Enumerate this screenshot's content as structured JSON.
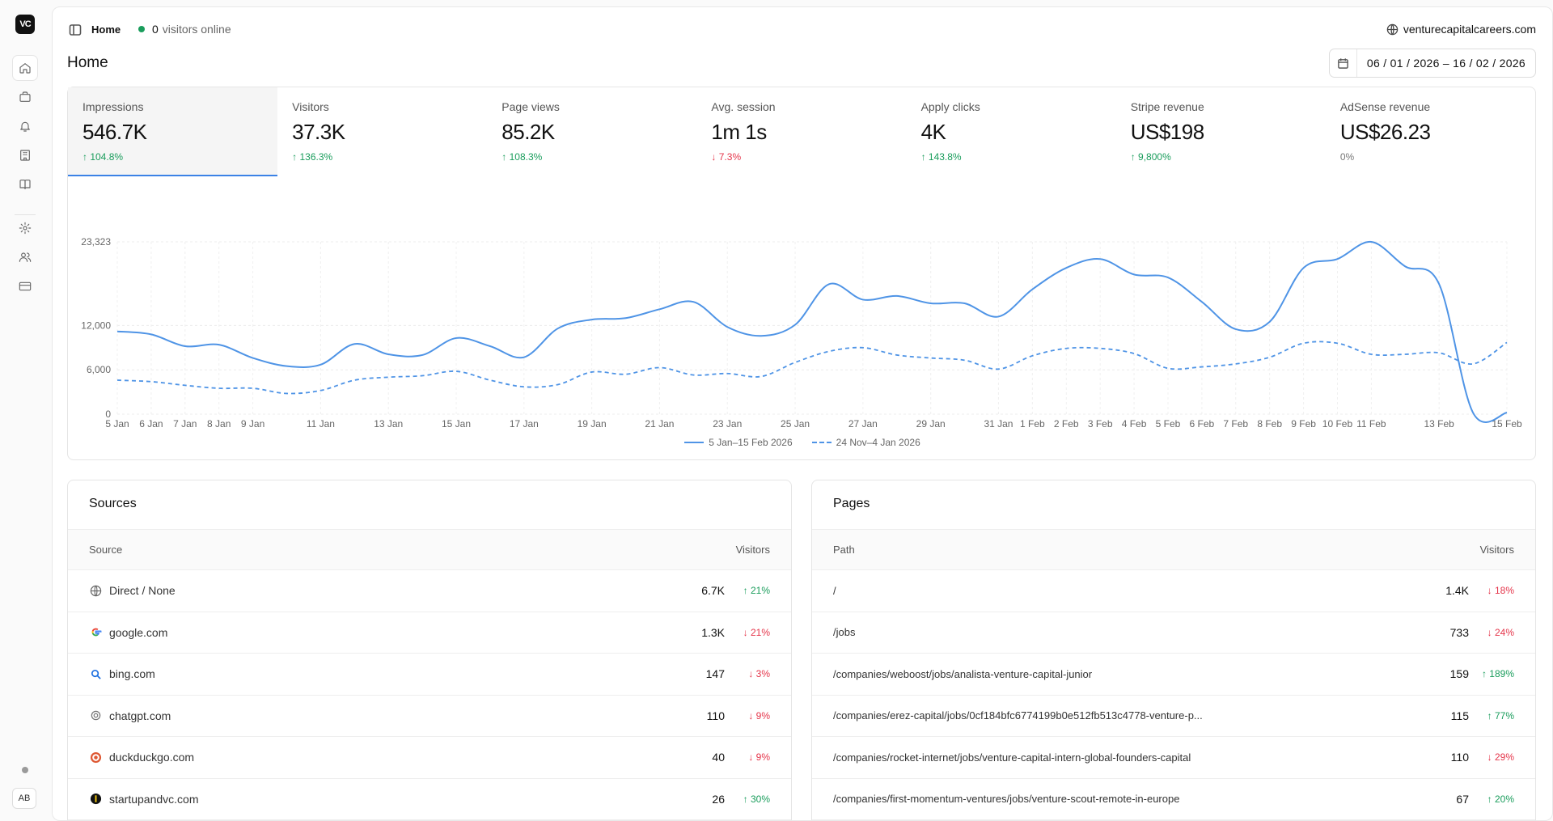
{
  "app": {
    "logo": "VC",
    "avatar": "AB"
  },
  "header": {
    "breadcrumb": "Home",
    "online_count": "0",
    "online_label": "visitors online",
    "site": "venturecapitalcareers.com"
  },
  "page": {
    "title": "Home",
    "date_range": "06 / 01 / 2026  –  16 / 02 / 2026"
  },
  "kpis": [
    {
      "label": "Impressions",
      "value": "546.7K",
      "delta": "↑ 104.8%",
      "dir": "up"
    },
    {
      "label": "Visitors",
      "value": "37.3K",
      "delta": "↑ 136.3%",
      "dir": "up"
    },
    {
      "label": "Page views",
      "value": "85.2K",
      "delta": "↑ 108.3%",
      "dir": "up"
    },
    {
      "label": "Avg. session",
      "value": "1m 1s",
      "delta": "↓ 7.3%",
      "dir": "down"
    },
    {
      "label": "Apply clicks",
      "value": "4K",
      "delta": "↑ 143.8%",
      "dir": "up"
    },
    {
      "label": "Stripe revenue",
      "value": "US$198",
      "delta": "↑ 9,800%",
      "dir": "up"
    },
    {
      "label": "AdSense revenue",
      "value": "US$26.23",
      "delta": "0%",
      "dir": "flat"
    }
  ],
  "chart_data": {
    "type": "line",
    "yticks": [
      "23,323",
      "12,000",
      "6,000",
      "0"
    ],
    "ylim": [
      0,
      23323
    ],
    "xticks": [
      [
        "5 Jan",
        0
      ],
      [
        "6 Jan",
        1
      ],
      [
        "7 Jan",
        2
      ],
      [
        "8 Jan",
        3
      ],
      [
        "9 Jan",
        4
      ],
      [
        "11 Jan",
        6
      ],
      [
        "13 Jan",
        8
      ],
      [
        "15 Jan",
        10
      ],
      [
        "17 Jan",
        12
      ],
      [
        "19 Jan",
        14
      ],
      [
        "21 Jan",
        16
      ],
      [
        "23 Jan",
        18
      ],
      [
        "25 Jan",
        20
      ],
      [
        "27 Jan",
        22
      ],
      [
        "29 Jan",
        24
      ],
      [
        "31 Jan",
        26
      ],
      [
        "1 Feb",
        27
      ],
      [
        "2 Feb",
        28
      ],
      [
        "3 Feb",
        29
      ],
      [
        "4 Feb",
        30
      ],
      [
        "5 Feb",
        31
      ],
      [
        "6 Feb",
        32
      ],
      [
        "7 Feb",
        33
      ],
      [
        "8 Feb",
        34
      ],
      [
        "9 Feb",
        35
      ],
      [
        "10 Feb",
        36
      ],
      [
        "11 Feb",
        37
      ],
      [
        "13 Feb",
        39
      ],
      [
        "15 Feb",
        41
      ]
    ],
    "series": [
      {
        "name": "5 Jan–15 Feb 2026",
        "style": "solid",
        "values": [
          11200,
          10800,
          9200,
          9400,
          7600,
          6500,
          6700,
          9500,
          8100,
          8000,
          10300,
          9200,
          7700,
          11600,
          12800,
          13000,
          14200,
          15200,
          11800,
          10600,
          12100,
          17600,
          15500,
          16000,
          15000,
          15000,
          13200,
          16900,
          19800,
          21000,
          18900,
          18500,
          15200,
          11500,
          12500,
          19800,
          21000,
          23323,
          20000,
          17600,
          200,
          200
        ]
      },
      {
        "name": "24 Nov–4 Jan 2026",
        "style": "dashed",
        "values": [
          4600,
          4400,
          3900,
          3500,
          3500,
          2800,
          3200,
          4600,
          5000,
          5200,
          5800,
          4600,
          3700,
          4000,
          5700,
          5400,
          6300,
          5300,
          5500,
          5100,
          7000,
          8500,
          9000,
          8000,
          7600,
          7300,
          6100,
          7900,
          8900,
          8900,
          8200,
          6200,
          6400,
          6800,
          7700,
          9600,
          9600,
          8100,
          8100,
          8300,
          6800,
          9700
        ]
      }
    ],
    "legend_position": "bottom-center",
    "grid": true
  },
  "sources": {
    "title": "Sources",
    "col1": "Source",
    "col2": "Visitors",
    "rows": [
      {
        "name": "Direct / None",
        "value": "6.7K",
        "delta": "↑ 21%",
        "dir": "up",
        "icon": "globe-icon"
      },
      {
        "name": "google.com",
        "value": "1.3K",
        "delta": "↓ 21%",
        "dir": "down",
        "icon": "google-icon"
      },
      {
        "name": "bing.com",
        "value": "147",
        "delta": "↓ 3%",
        "dir": "down",
        "icon": "bing-icon"
      },
      {
        "name": "chatgpt.com",
        "value": "110",
        "delta": "↓ 9%",
        "dir": "down",
        "icon": "chatgpt-icon"
      },
      {
        "name": "duckduckgo.com",
        "value": "40",
        "delta": "↓ 9%",
        "dir": "down",
        "icon": "duckduckgo-icon"
      },
      {
        "name": "startupandvc.com",
        "value": "26",
        "delta": "↑ 30%",
        "dir": "up",
        "icon": "startupandvc-icon"
      }
    ]
  },
  "pages": {
    "title": "Pages",
    "col1": "Path",
    "col2": "Visitors",
    "rows": [
      {
        "name": "/",
        "value": "1.4K",
        "delta": "↓ 18%",
        "dir": "down"
      },
      {
        "name": "/jobs",
        "value": "733",
        "delta": "↓ 24%",
        "dir": "down"
      },
      {
        "name": "/companies/weboost/jobs/analista-venture-capital-junior",
        "value": "159",
        "delta": "↑ 189%",
        "dir": "up"
      },
      {
        "name": "/companies/erez-capital/jobs/0cf184bfc6774199b0e512fb513c4778-venture-p...",
        "value": "115",
        "delta": "↑ 77%",
        "dir": "up"
      },
      {
        "name": "/companies/rocket-internet/jobs/venture-capital-intern-global-founders-capital",
        "value": "110",
        "delta": "↓ 29%",
        "dir": "down"
      },
      {
        "name": "/companies/first-momentum-ventures/jobs/venture-scout-remote-in-europe",
        "value": "67",
        "delta": "↑ 20%",
        "dir": "up"
      }
    ]
  }
}
